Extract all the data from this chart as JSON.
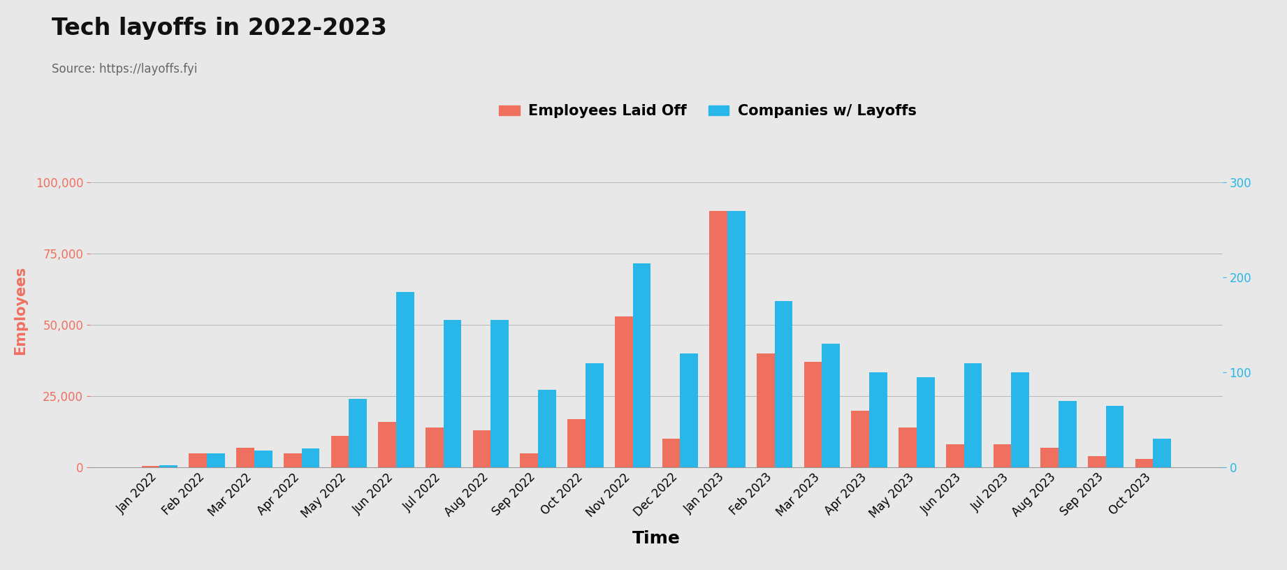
{
  "title": "Tech layoffs in 2022-2023",
  "source": "Source: https://layoffs.fyi",
  "xlabel": "Time",
  "ylabel_left": "Employees",
  "categories": [
    "Jan 2022",
    "Feb 2022",
    "Mar 2022",
    "Apr 2022",
    "May 2022",
    "Jun 2022",
    "Jul 2022",
    "Aug 2022",
    "Sep 2022",
    "Oct 2022",
    "Nov 2022",
    "Dec 2022",
    "Jan 2023",
    "Feb 2023",
    "Mar 2023",
    "Apr 2023",
    "May 2023",
    "Jun 2023",
    "Jul 2023",
    "Aug 2023",
    "Sep 2023",
    "Oct 2023"
  ],
  "employees_laid_off": [
    500,
    5000,
    7000,
    5000,
    11000,
    16000,
    14000,
    13000,
    5000,
    17000,
    53000,
    10000,
    90000,
    40000,
    37000,
    20000,
    14000,
    8000,
    8000,
    7000,
    4000,
    3000
  ],
  "companies_with_layoffs": [
    2,
    15,
    18,
    20,
    72,
    185,
    155,
    155,
    82,
    110,
    215,
    120,
    270,
    175,
    130,
    100,
    95,
    110,
    100,
    70,
    65,
    30
  ],
  "bar_color_employees": "#F07060",
  "bar_color_companies": "#29B6E8",
  "left_axis_color": "#F07060",
  "right_axis_color": "#29B6E8",
  "background_color": "#E8E8E8",
  "ylim_left": [
    0,
    110000
  ],
  "ylim_right": [
    0,
    330
  ],
  "yticks_left": [
    0,
    25000,
    50000,
    75000,
    100000
  ],
  "yticks_right": [
    0,
    100,
    200,
    300
  ],
  "title_fontsize": 24,
  "source_fontsize": 12,
  "axis_label_fontsize": 14,
  "tick_fontsize": 12,
  "legend_fontsize": 15
}
